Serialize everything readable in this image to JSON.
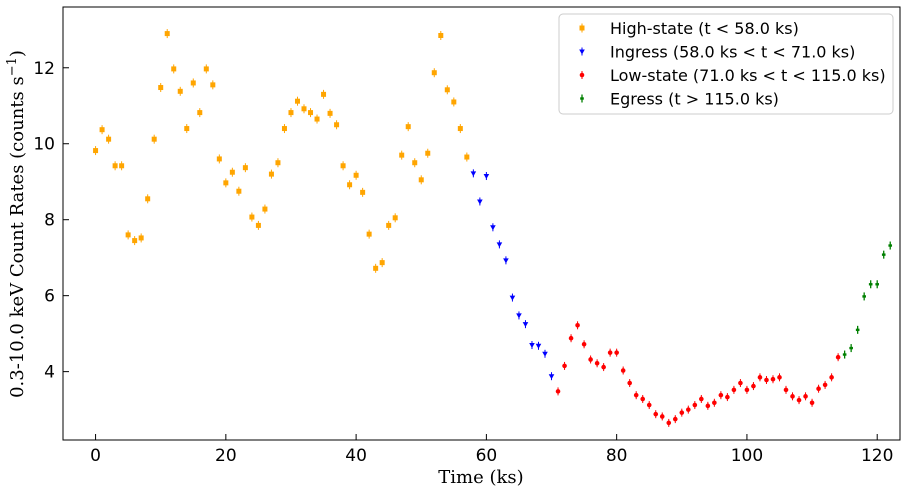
{
  "chart_data": {
    "type": "scatter",
    "xlabel": "Time (ks)",
    "ylabel": "0.3-10.0 keV Count Rates (counts s",
    "ylabel_sup": "−1",
    "ylabel_close": ")",
    "xlim": [
      -5,
      123.5
    ],
    "ylim": [
      2.2,
      13.6
    ],
    "xticks": [
      0,
      20,
      40,
      60,
      80,
      100,
      120
    ],
    "yticks": [
      4,
      6,
      8,
      10,
      12
    ],
    "grid": false,
    "legend_position": "top-right",
    "series": [
      {
        "name": "High-state (t < 58.0 ks)",
        "marker": "square",
        "color": "#FFA500",
        "points": [
          [
            0,
            9.82
          ],
          [
            1,
            10.37
          ],
          [
            2,
            10.12
          ],
          [
            3,
            9.42
          ],
          [
            4,
            9.42
          ],
          [
            5,
            7.6
          ],
          [
            6,
            7.45
          ],
          [
            7,
            7.52
          ],
          [
            8,
            8.55
          ],
          [
            9,
            10.12
          ],
          [
            10,
            11.48
          ],
          [
            11,
            12.9
          ],
          [
            12,
            11.97
          ],
          [
            13,
            11.38
          ],
          [
            14,
            10.4
          ],
          [
            15,
            11.6
          ],
          [
            16,
            10.82
          ],
          [
            17,
            11.97
          ],
          [
            18,
            11.55
          ],
          [
            19,
            9.6
          ],
          [
            20,
            8.97
          ],
          [
            21,
            9.25
          ],
          [
            22,
            8.75
          ],
          [
            23,
            9.37
          ],
          [
            24,
            8.07
          ],
          [
            25,
            7.85
          ],
          [
            26,
            8.28
          ],
          [
            27,
            9.2
          ],
          [
            28,
            9.5
          ],
          [
            29,
            10.4
          ],
          [
            30,
            10.82
          ],
          [
            31,
            11.12
          ],
          [
            32,
            10.92
          ],
          [
            33,
            10.82
          ],
          [
            34,
            10.65
          ],
          [
            35,
            11.3
          ],
          [
            36,
            10.8
          ],
          [
            37,
            10.5
          ],
          [
            38,
            9.42
          ],
          [
            39,
            8.92
          ],
          [
            40,
            9.17
          ],
          [
            41,
            8.72
          ],
          [
            42,
            7.62
          ],
          [
            43,
            6.72
          ],
          [
            44,
            6.87
          ],
          [
            45,
            7.85
          ],
          [
            46,
            8.05
          ],
          [
            47,
            9.7
          ],
          [
            48,
            10.45
          ],
          [
            49,
            9.5
          ],
          [
            50,
            9.05
          ],
          [
            51,
            9.75
          ],
          [
            52,
            11.87
          ],
          [
            53,
            12.85
          ],
          [
            54,
            11.42
          ],
          [
            55,
            11.1
          ],
          [
            56,
            10.4
          ],
          [
            57,
            9.65
          ]
        ]
      },
      {
        "name": "Ingress (58.0 ks < t < 71.0 ks)",
        "marker": "triangle-down",
        "color": "#0000FF",
        "points": [
          [
            58,
            9.22
          ],
          [
            59,
            8.48
          ],
          [
            60,
            9.15
          ],
          [
            61,
            7.8
          ],
          [
            62,
            7.35
          ],
          [
            63,
            6.93
          ],
          [
            64,
            5.95
          ],
          [
            65,
            5.48
          ],
          [
            66,
            5.25
          ],
          [
            67,
            4.7
          ],
          [
            68,
            4.68
          ],
          [
            69,
            4.47
          ],
          [
            70,
            3.88
          ]
        ]
      },
      {
        "name": "Low-state (71.0 ks < t < 115.0 ks)",
        "marker": "circle",
        "color": "#FF0000",
        "points": [
          [
            71,
            3.48
          ],
          [
            72,
            4.15
          ],
          [
            73,
            4.88
          ],
          [
            74,
            5.22
          ],
          [
            75,
            4.72
          ],
          [
            76,
            4.32
          ],
          [
            77,
            4.22
          ],
          [
            78,
            4.12
          ],
          [
            79,
            4.5
          ],
          [
            80,
            4.5
          ],
          [
            81,
            4.03
          ],
          [
            82,
            3.7
          ],
          [
            83,
            3.38
          ],
          [
            84,
            3.28
          ],
          [
            85,
            3.12
          ],
          [
            86,
            2.88
          ],
          [
            87,
            2.82
          ],
          [
            88,
            2.65
          ],
          [
            89,
            2.75
          ],
          [
            90,
            2.92
          ],
          [
            91,
            3.0
          ],
          [
            92,
            3.12
          ],
          [
            93,
            3.28
          ],
          [
            94,
            3.1
          ],
          [
            95,
            3.18
          ],
          [
            96,
            3.38
          ],
          [
            97,
            3.33
          ],
          [
            98,
            3.52
          ],
          [
            99,
            3.7
          ],
          [
            100,
            3.52
          ],
          [
            101,
            3.62
          ],
          [
            102,
            3.85
          ],
          [
            103,
            3.78
          ],
          [
            104,
            3.8
          ],
          [
            105,
            3.85
          ],
          [
            106,
            3.52
          ],
          [
            107,
            3.35
          ],
          [
            108,
            3.25
          ],
          [
            109,
            3.35
          ],
          [
            110,
            3.18
          ],
          [
            111,
            3.55
          ],
          [
            112,
            3.65
          ],
          [
            113,
            3.85
          ],
          [
            114,
            4.38
          ]
        ]
      },
      {
        "name": "Egress (t > 115.0 ks)",
        "marker": "plus",
        "color": "#008000",
        "points": [
          [
            115,
            4.45
          ],
          [
            116,
            4.62
          ],
          [
            117,
            5.1
          ],
          [
            118,
            5.98
          ],
          [
            119,
            6.3
          ],
          [
            120,
            6.3
          ],
          [
            121,
            7.08
          ],
          [
            122,
            7.32
          ]
        ]
      }
    ]
  }
}
